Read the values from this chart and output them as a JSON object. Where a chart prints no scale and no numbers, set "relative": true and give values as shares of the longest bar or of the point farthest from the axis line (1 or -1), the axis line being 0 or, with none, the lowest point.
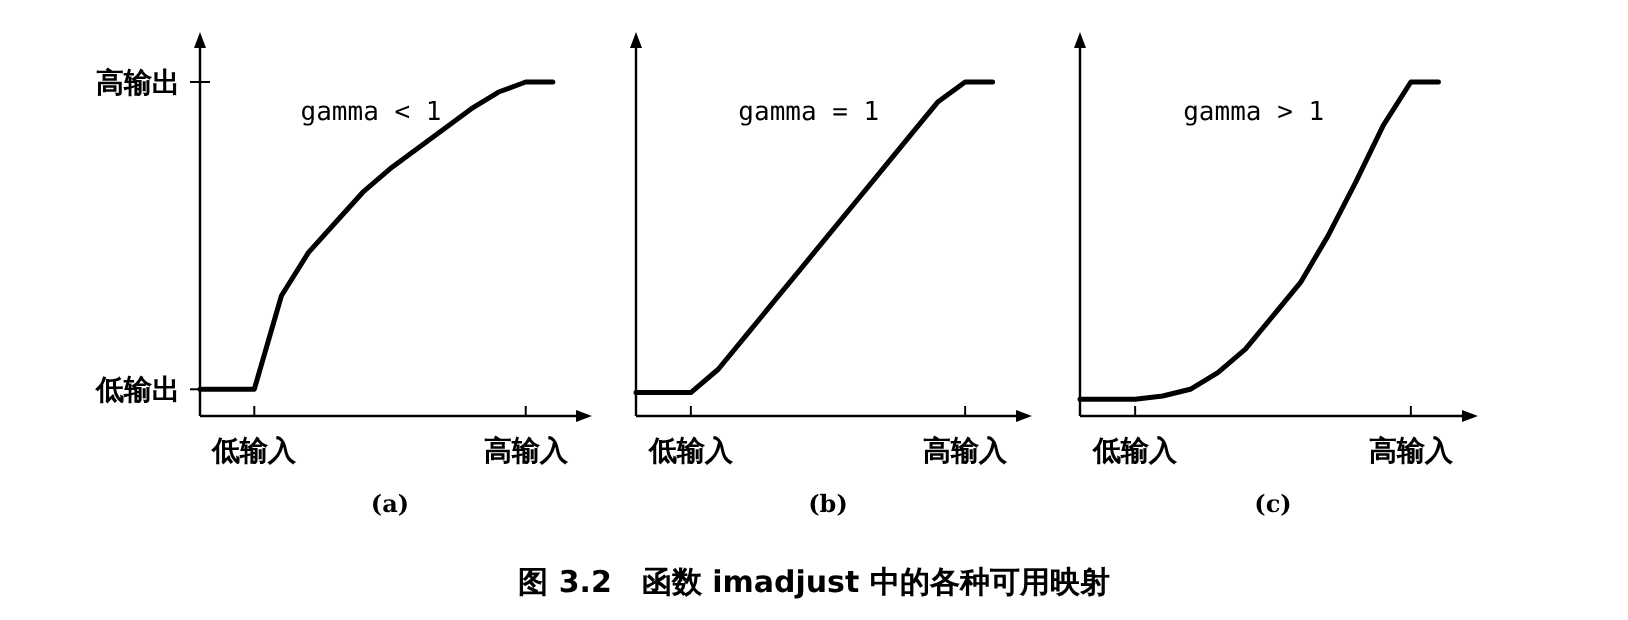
{
  "chart_data": [
    {
      "type": "line",
      "title": "gamma < 1",
      "xlabel": "(a)",
      "relative": true,
      "color": "#000000",
      "categories": [
        null,
        null,
        "低输入",
        null,
        null,
        null,
        null,
        null,
        null,
        null,
        null,
        null,
        "高输入",
        null
      ],
      "annotations": [
        "低输出",
        "高输出"
      ],
      "values": [
        0.08,
        0.08,
        0.08,
        0.36,
        0.49,
        0.58,
        0.67,
        0.74,
        0.8,
        0.86,
        0.92,
        0.97,
        1,
        1
      ]
    },
    {
      "type": "line",
      "title": "gamma = 1",
      "xlabel": "(b)",
      "relative": true,
      "color": "#000000",
      "categories": [
        null,
        null,
        "低输入",
        null,
        null,
        null,
        null,
        null,
        null,
        null,
        null,
        null,
        "高输入",
        null
      ],
      "values": [
        0.07,
        0.07,
        0.07,
        0.14,
        0.24,
        0.34,
        0.44,
        0.54,
        0.64,
        0.74,
        0.84,
        0.94,
        1,
        1
      ],
      "annotations": [
        "图 3.2　函数 imadjust 中的各种可用映射"
      ]
    },
    {
      "type": "line",
      "title": "gamma > 1",
      "xlabel": "(c)",
      "relative": true,
      "color": "#000000",
      "categories": [
        null,
        null,
        "低输入",
        null,
        null,
        null,
        null,
        null,
        null,
        null,
        null,
        null,
        "高输入",
        null
      ],
      "values": [
        0.05,
        0.05,
        0.05,
        0.06,
        0.08,
        0.13,
        0.2,
        0.3,
        0.4,
        0.54,
        0.7,
        0.87,
        1,
        1
      ]
    }
  ]
}
